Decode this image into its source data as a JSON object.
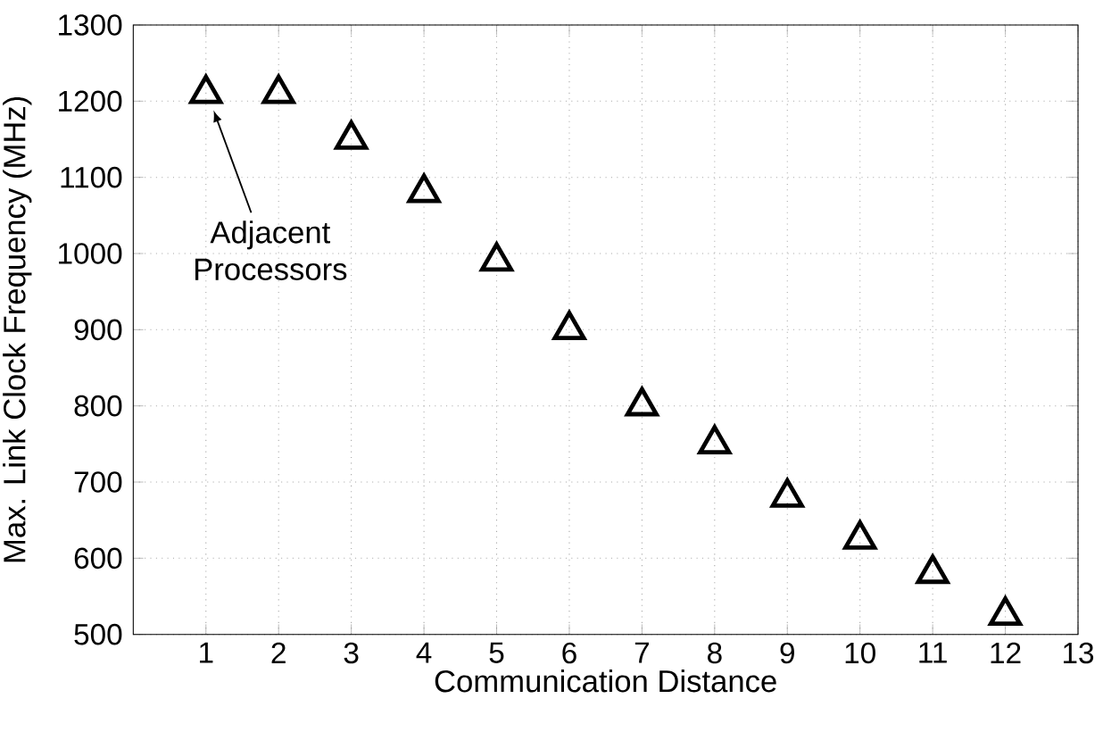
{
  "chart_data": {
    "type": "scatter",
    "xlabel": "Communication Distance",
    "ylabel": "Max. Link Clock Frequency (MHz)",
    "x": [
      1,
      2,
      3,
      4,
      5,
      6,
      7,
      8,
      9,
      10,
      11,
      12
    ],
    "values": [
      1210,
      1210,
      1150,
      1080,
      990,
      900,
      800,
      750,
      680,
      625,
      580,
      525
    ],
    "color": "#000000",
    "marker": "triangle",
    "xlim": [
      0,
      13
    ],
    "xticks": [
      1,
      2,
      3,
      4,
      5,
      6,
      7,
      8,
      9,
      10,
      11,
      12,
      13
    ],
    "ylim": [
      500,
      1300
    ],
    "yticks": [
      500,
      600,
      700,
      800,
      900,
      1000,
      1100,
      1200,
      1300
    ],
    "grid": true,
    "annotations": [
      "Adjacent Processors"
    ]
  }
}
